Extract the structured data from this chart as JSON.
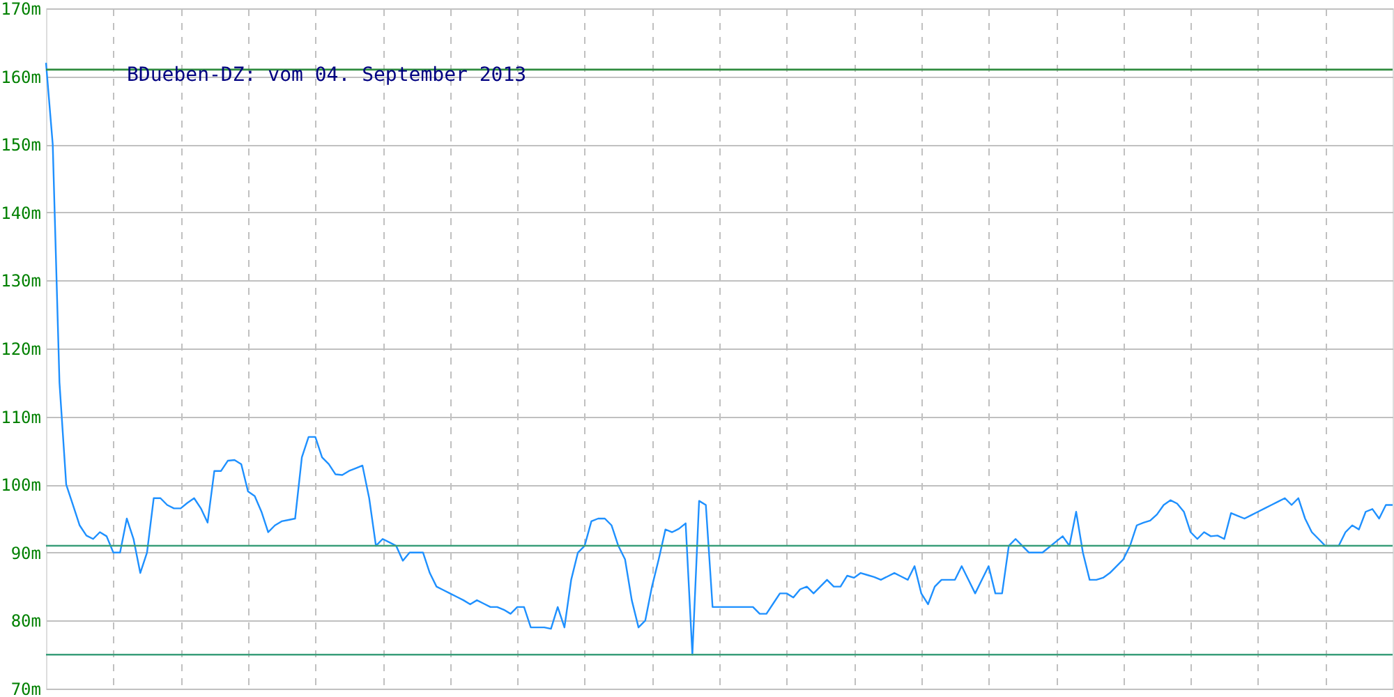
{
  "chart_data": {
    "type": "line",
    "title": "BDueben-DZ: vom 04. September 2013",
    "categories": [
      null,
      null,
      null,
      null,
      null,
      null,
      null,
      null,
      null,
      null,
      null,
      null,
      null,
      null,
      null,
      null,
      null,
      null,
      null,
      null,
      null,
      null,
      null,
      null,
      null,
      null,
      null,
      null,
      null,
      null,
      null,
      null,
      null,
      null,
      null,
      null,
      null,
      null,
      null,
      null,
      null,
      null,
      null,
      null,
      null,
      null,
      null,
      null,
      null,
      null,
      null,
      null,
      null,
      null,
      null,
      null,
      null,
      null,
      null,
      null,
      null,
      null,
      null,
      null,
      null,
      null,
      null,
      null,
      null,
      null,
      null,
      null,
      null,
      null,
      null,
      null,
      null,
      null,
      null,
      null,
      null,
      null,
      null,
      null,
      null,
      null,
      null,
      null,
      null,
      null,
      null,
      null,
      null,
      null,
      null,
      null,
      null,
      null,
      null,
      null,
      null,
      null,
      null,
      null,
      null,
      null,
      null,
      null,
      null,
      null,
      null,
      null,
      null,
      null,
      null,
      null,
      null,
      null,
      null,
      null,
      null,
      null,
      null,
      null,
      null,
      null,
      null,
      null,
      null,
      null,
      null,
      null,
      null,
      null,
      null,
      null,
      null,
      null,
      null,
      null,
      null,
      null,
      null,
      null,
      null,
      null,
      null,
      null,
      null,
      null,
      null,
      null,
      null,
      null,
      null,
      null,
      null,
      null,
      null,
      null,
      null,
      null,
      null,
      null,
      null,
      null,
      null,
      null,
      null,
      null,
      null,
      null,
      null,
      null,
      null,
      null,
      null,
      null,
      null,
      null,
      null,
      null,
      null,
      null,
      null,
      null,
      null,
      null,
      null,
      null,
      null,
      null,
      null,
      null,
      null,
      null,
      null,
      null,
      null,
      null,
      null
    ],
    "series": [
      {
        "color": "#1e90ff",
        "values": [
          162,
          150,
          115,
          100,
          97,
          94,
          92.5,
          92,
          93,
          92.4,
          90,
          90,
          95,
          92,
          87,
          90,
          98,
          98,
          97,
          96.5,
          96.5,
          97.3,
          98,
          96.5,
          94.4,
          102,
          102,
          103.5,
          103.6,
          103,
          99,
          98.3,
          96,
          93,
          94,
          94.6,
          94.8,
          95,
          104,
          107,
          107,
          104,
          103,
          101.5,
          101.4,
          102,
          102.4,
          102.8,
          98,
          91,
          92,
          91.5,
          91,
          88.8,
          90,
          90,
          90,
          87,
          85,
          84.5,
          84,
          83.5,
          83,
          82.4,
          83,
          82.5,
          82,
          82,
          81.6,
          81,
          82,
          82,
          79,
          79,
          79,
          78.8,
          82,
          79,
          86,
          90,
          91,
          94.6,
          95,
          95,
          94,
          91,
          89,
          83,
          79,
          80,
          85,
          89,
          93.4,
          93,
          93.5,
          94.3,
          75,
          97.6,
          97,
          82,
          82,
          82,
          82,
          82,
          82,
          82,
          81,
          81,
          82.5,
          84,
          84,
          83.4,
          84.6,
          85,
          84,
          85,
          86,
          85,
          85,
          86.6,
          86.3,
          87,
          86.7,
          86.4,
          86,
          86.5,
          87,
          86.5,
          86,
          88,
          84,
          82.4,
          85,
          86,
          86,
          86,
          88,
          86,
          84,
          86,
          88,
          84,
          84,
          91,
          92,
          91,
          90,
          90,
          90,
          90.8,
          91.6,
          92.4,
          91,
          96,
          90,
          86,
          86,
          86.3,
          87,
          88,
          89,
          91,
          94,
          94.4,
          94.7,
          95.6,
          97,
          97.7,
          97.2,
          96,
          93,
          92,
          93,
          92.4,
          92.5,
          92,
          95.8,
          95.4,
          95,
          95.5,
          96,
          96.5,
          97,
          97.5,
          98,
          97,
          98,
          95,
          93,
          92,
          91,
          91,
          91,
          93,
          94,
          93.4,
          96,
          96.4,
          95,
          97,
          97
        ]
      }
    ],
    "ylim": [
      70,
      170
    ],
    "yticks": [
      {
        "value": 70,
        "label": "70m"
      },
      {
        "value": 80,
        "label": "80m"
      },
      {
        "value": 90,
        "label": "90m"
      },
      {
        "value": 100,
        "label": "100m"
      },
      {
        "value": 110,
        "label": "110m"
      },
      {
        "value": 120,
        "label": "120m"
      },
      {
        "value": 130,
        "label": "130m"
      },
      {
        "value": 140,
        "label": "140m"
      },
      {
        "value": 150,
        "label": "150m"
      },
      {
        "value": 160,
        "label": "160m"
      },
      {
        "value": 170,
        "label": "170m"
      }
    ],
    "tick_labels": "y",
    "grid": true,
    "marker": "none",
    "line_style": "solid",
    "ref_lines": [
      {
        "axis": "y",
        "value": 161,
        "color": "#2e8b3e"
      },
      {
        "axis": "y",
        "value": 91,
        "color": "#3a9e7a"
      },
      {
        "axis": "y",
        "value": 75,
        "color": "#3a9e7a"
      }
    ]
  }
}
